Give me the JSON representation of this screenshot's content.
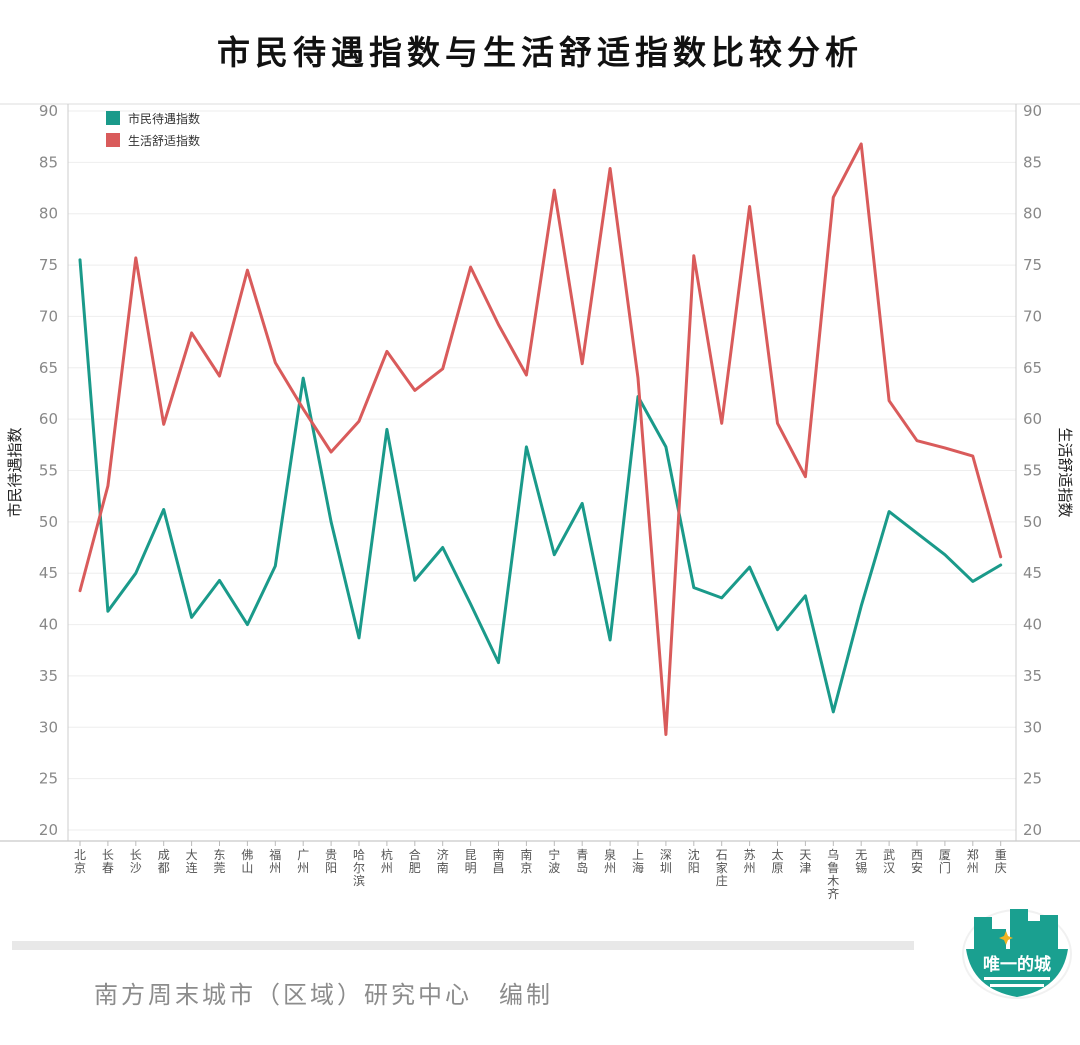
{
  "title": "市民待遇指数与生活舒适指数比较分析",
  "footer": {
    "credit": "南方周末城市（区域）研究中心　编制",
    "logo_text": "唯一的城"
  },
  "chart_data": {
    "type": "line",
    "title": "市民待遇指数与生活舒适指数比较分析",
    "ylabel_left": "市民待遇指数",
    "ylabel_right": "生活舒适指数",
    "ylim": [
      20,
      90
    ],
    "yticks": [
      20,
      25,
      30,
      35,
      40,
      45,
      50,
      55,
      60,
      65,
      70,
      75,
      80,
      85,
      90
    ],
    "grid": true,
    "legend_position": "top-left",
    "categories": [
      "北京",
      "长春",
      "长沙",
      "成都",
      "大连",
      "东莞",
      "佛山",
      "福州",
      "广州",
      "贵阳",
      "哈尔滨",
      "杭州",
      "合肥",
      "济南",
      "昆明",
      "南昌",
      "南京",
      "宁波",
      "青岛",
      "泉州",
      "上海",
      "深圳",
      "沈阳",
      "石家庄",
      "苏州",
      "太原",
      "天津",
      "乌鲁木齐",
      "无锡",
      "武汉",
      "西安",
      "厦门",
      "郑州",
      "重庆"
    ],
    "series": [
      {
        "name": "市民待遇指数",
        "color": "#1a9a8a",
        "values": [
          75.5,
          41.3,
          45.0,
          51.2,
          40.7,
          44.3,
          40.0,
          45.7,
          64.0,
          50.0,
          38.7,
          59.0,
          44.3,
          47.5,
          42.0,
          36.3,
          57.3,
          46.8,
          51.8,
          38.5,
          62.2,
          57.3,
          43.6,
          42.6,
          45.6,
          39.5,
          42.8,
          31.5,
          41.8,
          51.0,
          48.9,
          46.8,
          44.2,
          45.8
        ]
      },
      {
        "name": "生活舒适指数",
        "color": "#d95b5b",
        "values": [
          43.3,
          53.5,
          75.7,
          59.5,
          68.4,
          64.2,
          74.5,
          65.5,
          61.0,
          56.8,
          59.8,
          66.6,
          62.8,
          64.9,
          74.8,
          69.2,
          64.3,
          82.3,
          65.4,
          84.4,
          64.0,
          29.3,
          75.9,
          59.6,
          80.7,
          59.6,
          54.4,
          81.6,
          86.8,
          61.8,
          57.9,
          57.2,
          56.4,
          46.6
        ]
      }
    ]
  }
}
